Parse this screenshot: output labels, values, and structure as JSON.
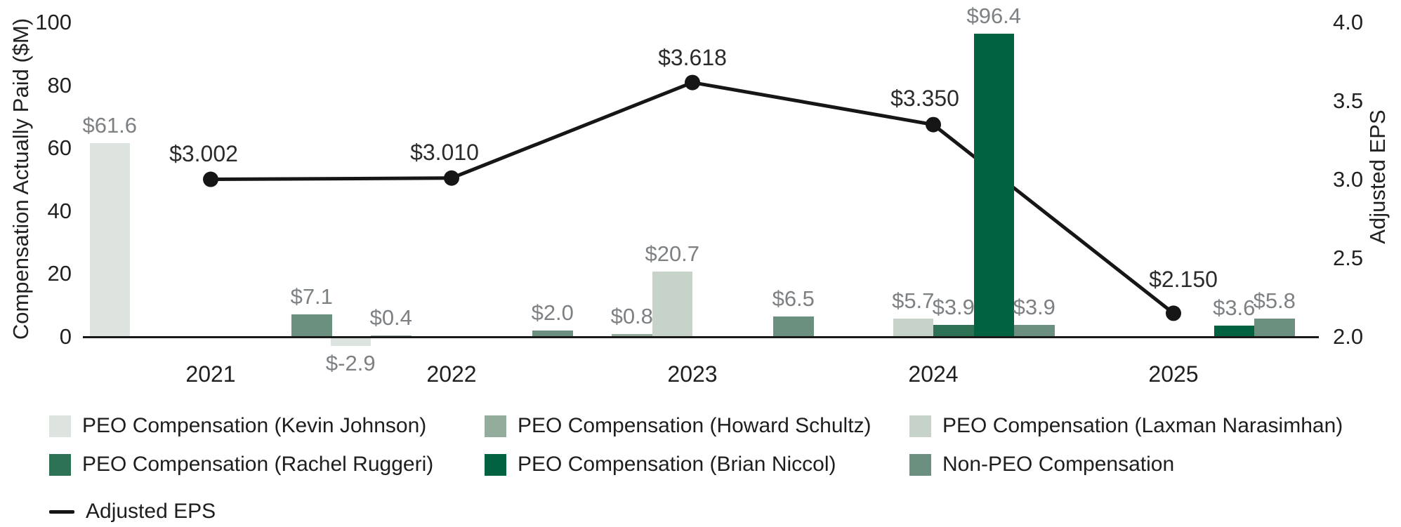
{
  "figure": {
    "left_axis": {
      "title": "Compensation Actually Paid ($M)",
      "ticks": [
        {
          "label": "100",
          "value": 100
        },
        {
          "label": "80",
          "value": 80
        },
        {
          "label": "60",
          "value": 60
        },
        {
          "label": "40",
          "value": 40
        },
        {
          "label": "20",
          "value": 20
        },
        {
          "label": "0",
          "value": 0
        }
      ]
    },
    "right_axis": {
      "title": "Adjusted EPS",
      "ticks": [
        {
          "label": "4.0",
          "value": 4.0
        },
        {
          "label": "3.5",
          "value": 3.5
        },
        {
          "label": "3.0",
          "value": 3.0
        },
        {
          "label": "2.5",
          "value": 2.5
        },
        {
          "label": "2.0",
          "value": 2.0
        }
      ]
    },
    "legend": {
      "items": [
        {
          "label": "PEO Compensation (Kevin Johnson)",
          "color": "#dde3de",
          "type": "swatch",
          "col": 0,
          "row": 0
        },
        {
          "label": "PEO Compensation (Howard Schultz)",
          "color": "#94ac9c",
          "type": "swatch",
          "col": 1,
          "row": 0
        },
        {
          "label": "PEO Compensation (Laxman Narasimhan)",
          "color": "#c7d2c8",
          "type": "swatch",
          "col": 2,
          "row": 0
        },
        {
          "label": "PEO Compensation (Rachel Ruggeri)",
          "color": "#2e7256",
          "type": "swatch",
          "col": 0,
          "row": 1
        },
        {
          "label": "PEO Compensation (Brian Niccol)",
          "color": "#006241",
          "type": "swatch",
          "col": 1,
          "row": 1
        },
        {
          "label": "Non-PEO Compensation",
          "color": "#6b9080",
          "type": "swatch",
          "col": 2,
          "row": 1
        },
        {
          "label": "Adjusted EPS",
          "color": "#161616",
          "type": "line",
          "col": 0,
          "row": 2
        }
      ]
    }
  },
  "chart_data": {
    "type": "bar+line",
    "categories": [
      "2021",
      "2022",
      "2023",
      "2024",
      "2025"
    ],
    "bar_series": [
      {
        "name": "PEO Compensation (Kevin Johnson)",
        "color": "#dde3de",
        "slot": 0,
        "values": [
          61.6,
          -2.9,
          null,
          null,
          null
        ],
        "labels": [
          "$61.6",
          "$-2.9",
          null,
          null,
          null
        ]
      },
      {
        "name": "PEO Compensation (Howard Schultz)",
        "color": "#94ac9c",
        "slot": 1,
        "values": [
          null,
          0.4,
          0.8,
          null,
          null
        ],
        "labels": [
          null,
          "$0.4",
          "$0.8",
          null,
          null
        ]
      },
      {
        "name": "PEO Compensation (Laxman Narasimhan)",
        "color": "#c7d2c8",
        "slot": 2,
        "values": [
          null,
          null,
          20.7,
          5.7,
          null
        ],
        "labels": [
          null,
          null,
          "$20.7",
          "$5.7",
          null
        ]
      },
      {
        "name": "PEO Compensation (Rachel Ruggeri)",
        "color": "#2e7256",
        "slot": 3,
        "values": [
          null,
          null,
          null,
          3.9,
          null
        ],
        "labels": [
          null,
          null,
          null,
          "$3.9",
          null
        ]
      },
      {
        "name": "PEO Compensation (Brian Niccol)",
        "color": "#006241",
        "slot": 4,
        "values": [
          null,
          null,
          null,
          96.4,
          3.6
        ],
        "labels": [
          null,
          null,
          null,
          "$96.4",
          "$3.6"
        ]
      },
      {
        "name": "Non-PEO Compensation",
        "color": "#6b9080",
        "slot": 5,
        "values": [
          7.1,
          2.0,
          6.5,
          3.9,
          5.8
        ],
        "labels": [
          "$7.1",
          "$2.0",
          "$6.5",
          "$3.9",
          "$5.8"
        ]
      }
    ],
    "line_series": {
      "name": "Adjusted EPS",
      "color": "#161616",
      "values": [
        3.002,
        3.01,
        3.618,
        3.35,
        2.15
      ],
      "labels": [
        "$3.002",
        "$3.010",
        "$3.618",
        "$3.350",
        "$2.150"
      ]
    },
    "left_axis_label": "Compensation Actually Paid ($M)",
    "right_axis_label": "Adjusted EPS",
    "left_axis_range": [
      0,
      100
    ],
    "right_axis_range": [
      2.0,
      4.0
    ],
    "grid": false,
    "legend_position": "bottom"
  }
}
